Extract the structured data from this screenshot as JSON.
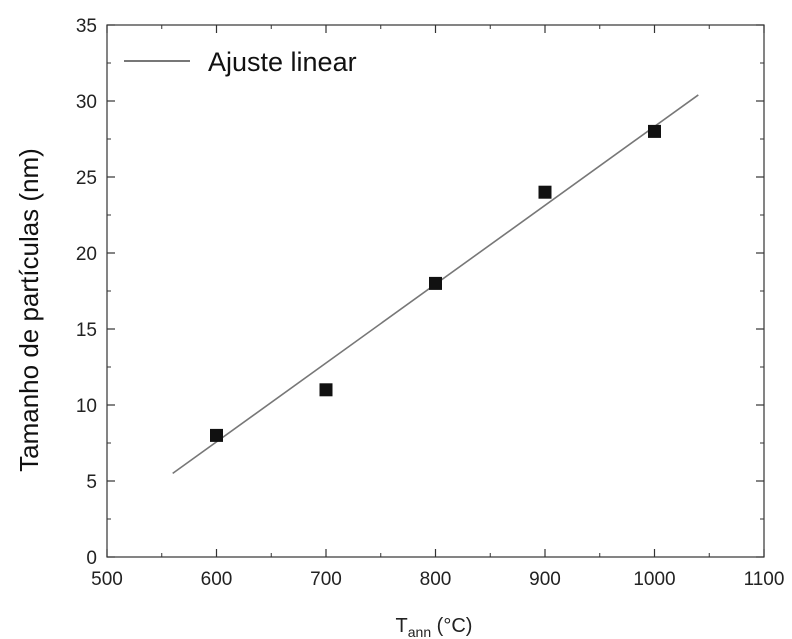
{
  "chart_data": {
    "type": "scatter",
    "xlabel_main": "T",
    "xlabel_sub": "ann",
    "xlabel_unit": " (°C)",
    "ylabel": "Tamanho de partículas (nm)",
    "xlim": [
      500,
      1100
    ],
    "ylim": [
      0,
      35
    ],
    "xticks": [
      500,
      600,
      700,
      800,
      900,
      1000,
      1100
    ],
    "yticks": [
      0,
      5,
      10,
      15,
      20,
      25,
      30,
      35
    ],
    "grid": false,
    "legend_position": "top-left",
    "series": [
      {
        "type": "scatter",
        "marker": "square",
        "color": "#111111",
        "x": [
          600,
          700,
          800,
          900,
          1000
        ],
        "y": [
          8,
          11,
          18,
          24,
          28
        ]
      },
      {
        "type": "line",
        "name": "Ajuste linear",
        "color": "#777777",
        "x": [
          560,
          1040
        ],
        "y": [
          5.5,
          30.4
        ]
      }
    ]
  }
}
